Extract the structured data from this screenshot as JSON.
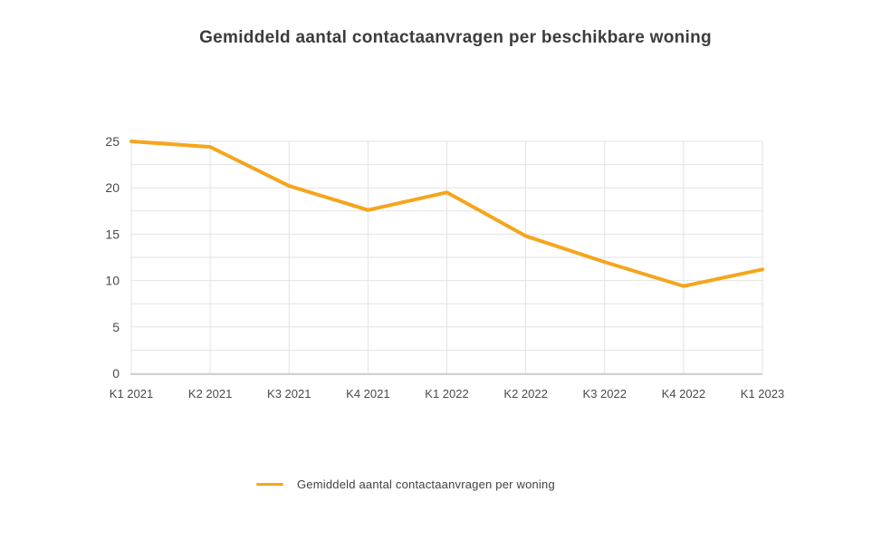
{
  "chart_data": {
    "type": "line",
    "title": "Gemiddeld aantal contactaanvragen per beschikbare woning",
    "categories": [
      "K1 2021",
      "K2 2021",
      "K3 2021",
      "K4 2021",
      "K1 2022",
      "K2 2022",
      "K3 2022",
      "K4 2022",
      "K1 2023"
    ],
    "series": [
      {
        "name": "Gemiddeld aantal contactaanvragen per woning",
        "values": [
          25.0,
          24.4,
          20.2,
          17.6,
          19.5,
          14.8,
          12.0,
          9.4,
          11.2
        ]
      }
    ],
    "xlabel": "",
    "ylabel": "",
    "ylim": [
      0,
      25
    ],
    "yticks": [
      0,
      5,
      10,
      15,
      20,
      25
    ],
    "grid": {
      "horizontal_minor_step": 2.5,
      "vertical_at_categories": true
    },
    "legend": {
      "position": "bottom",
      "entries": [
        "Gemiddeld aantal contactaanvragen per woning"
      ]
    },
    "colors": {
      "line": "#F5A51D",
      "grid": "#e3e3e3",
      "axis": "#d2d2d2",
      "title_text": "#3c3c3c",
      "tick_text": "#4a4a4a"
    }
  }
}
